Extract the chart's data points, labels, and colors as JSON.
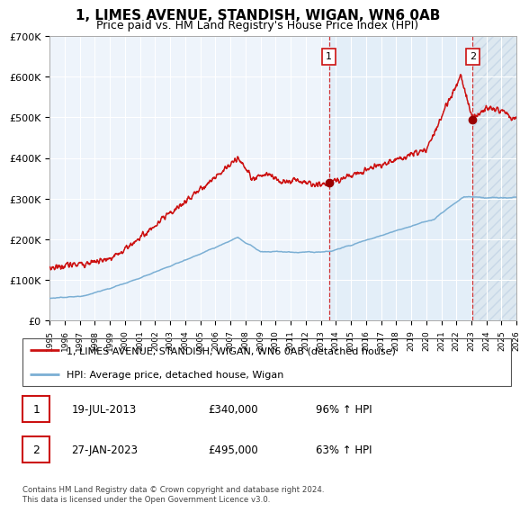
{
  "title": "1, LIMES AVENUE, STANDISH, WIGAN, WN6 0AB",
  "subtitle": "Price paid vs. HM Land Registry's House Price Index (HPI)",
  "x_start_year": 1995,
  "x_end_year": 2026,
  "ylim": [
    0,
    700000
  ],
  "yticks": [
    0,
    100000,
    200000,
    300000,
    400000,
    500000,
    600000,
    700000
  ],
  "ytick_labels": [
    "£0",
    "£100K",
    "£200K",
    "£300K",
    "£400K",
    "£500K",
    "£600K",
    "£700K"
  ],
  "hpi_color": "#7bafd4",
  "price_color": "#cc1111",
  "marker_color": "#990000",
  "bg_color": "#eef4fb",
  "hatch_bg_color": "#dde8f0",
  "event1_date": "19-JUL-2013",
  "event1_price": 340000,
  "event1_hpi_pct": "96%",
  "event1_year": 2013.55,
  "event2_date": "27-JAN-2023",
  "event2_price": 495000,
  "event2_hpi_pct": "63%",
  "event2_year": 2023.08,
  "legend1": "1, LIMES AVENUE, STANDISH, WIGAN, WN6 0AB (detached house)",
  "legend2": "HPI: Average price, detached house, Wigan",
  "footnote": "Contains HM Land Registry data © Crown copyright and database right 2024.\nThis data is licensed under the Open Government Licence v3.0.",
  "title_fontsize": 11,
  "subtitle_fontsize": 9,
  "label_fontsize": 8,
  "legend_fontsize": 8
}
